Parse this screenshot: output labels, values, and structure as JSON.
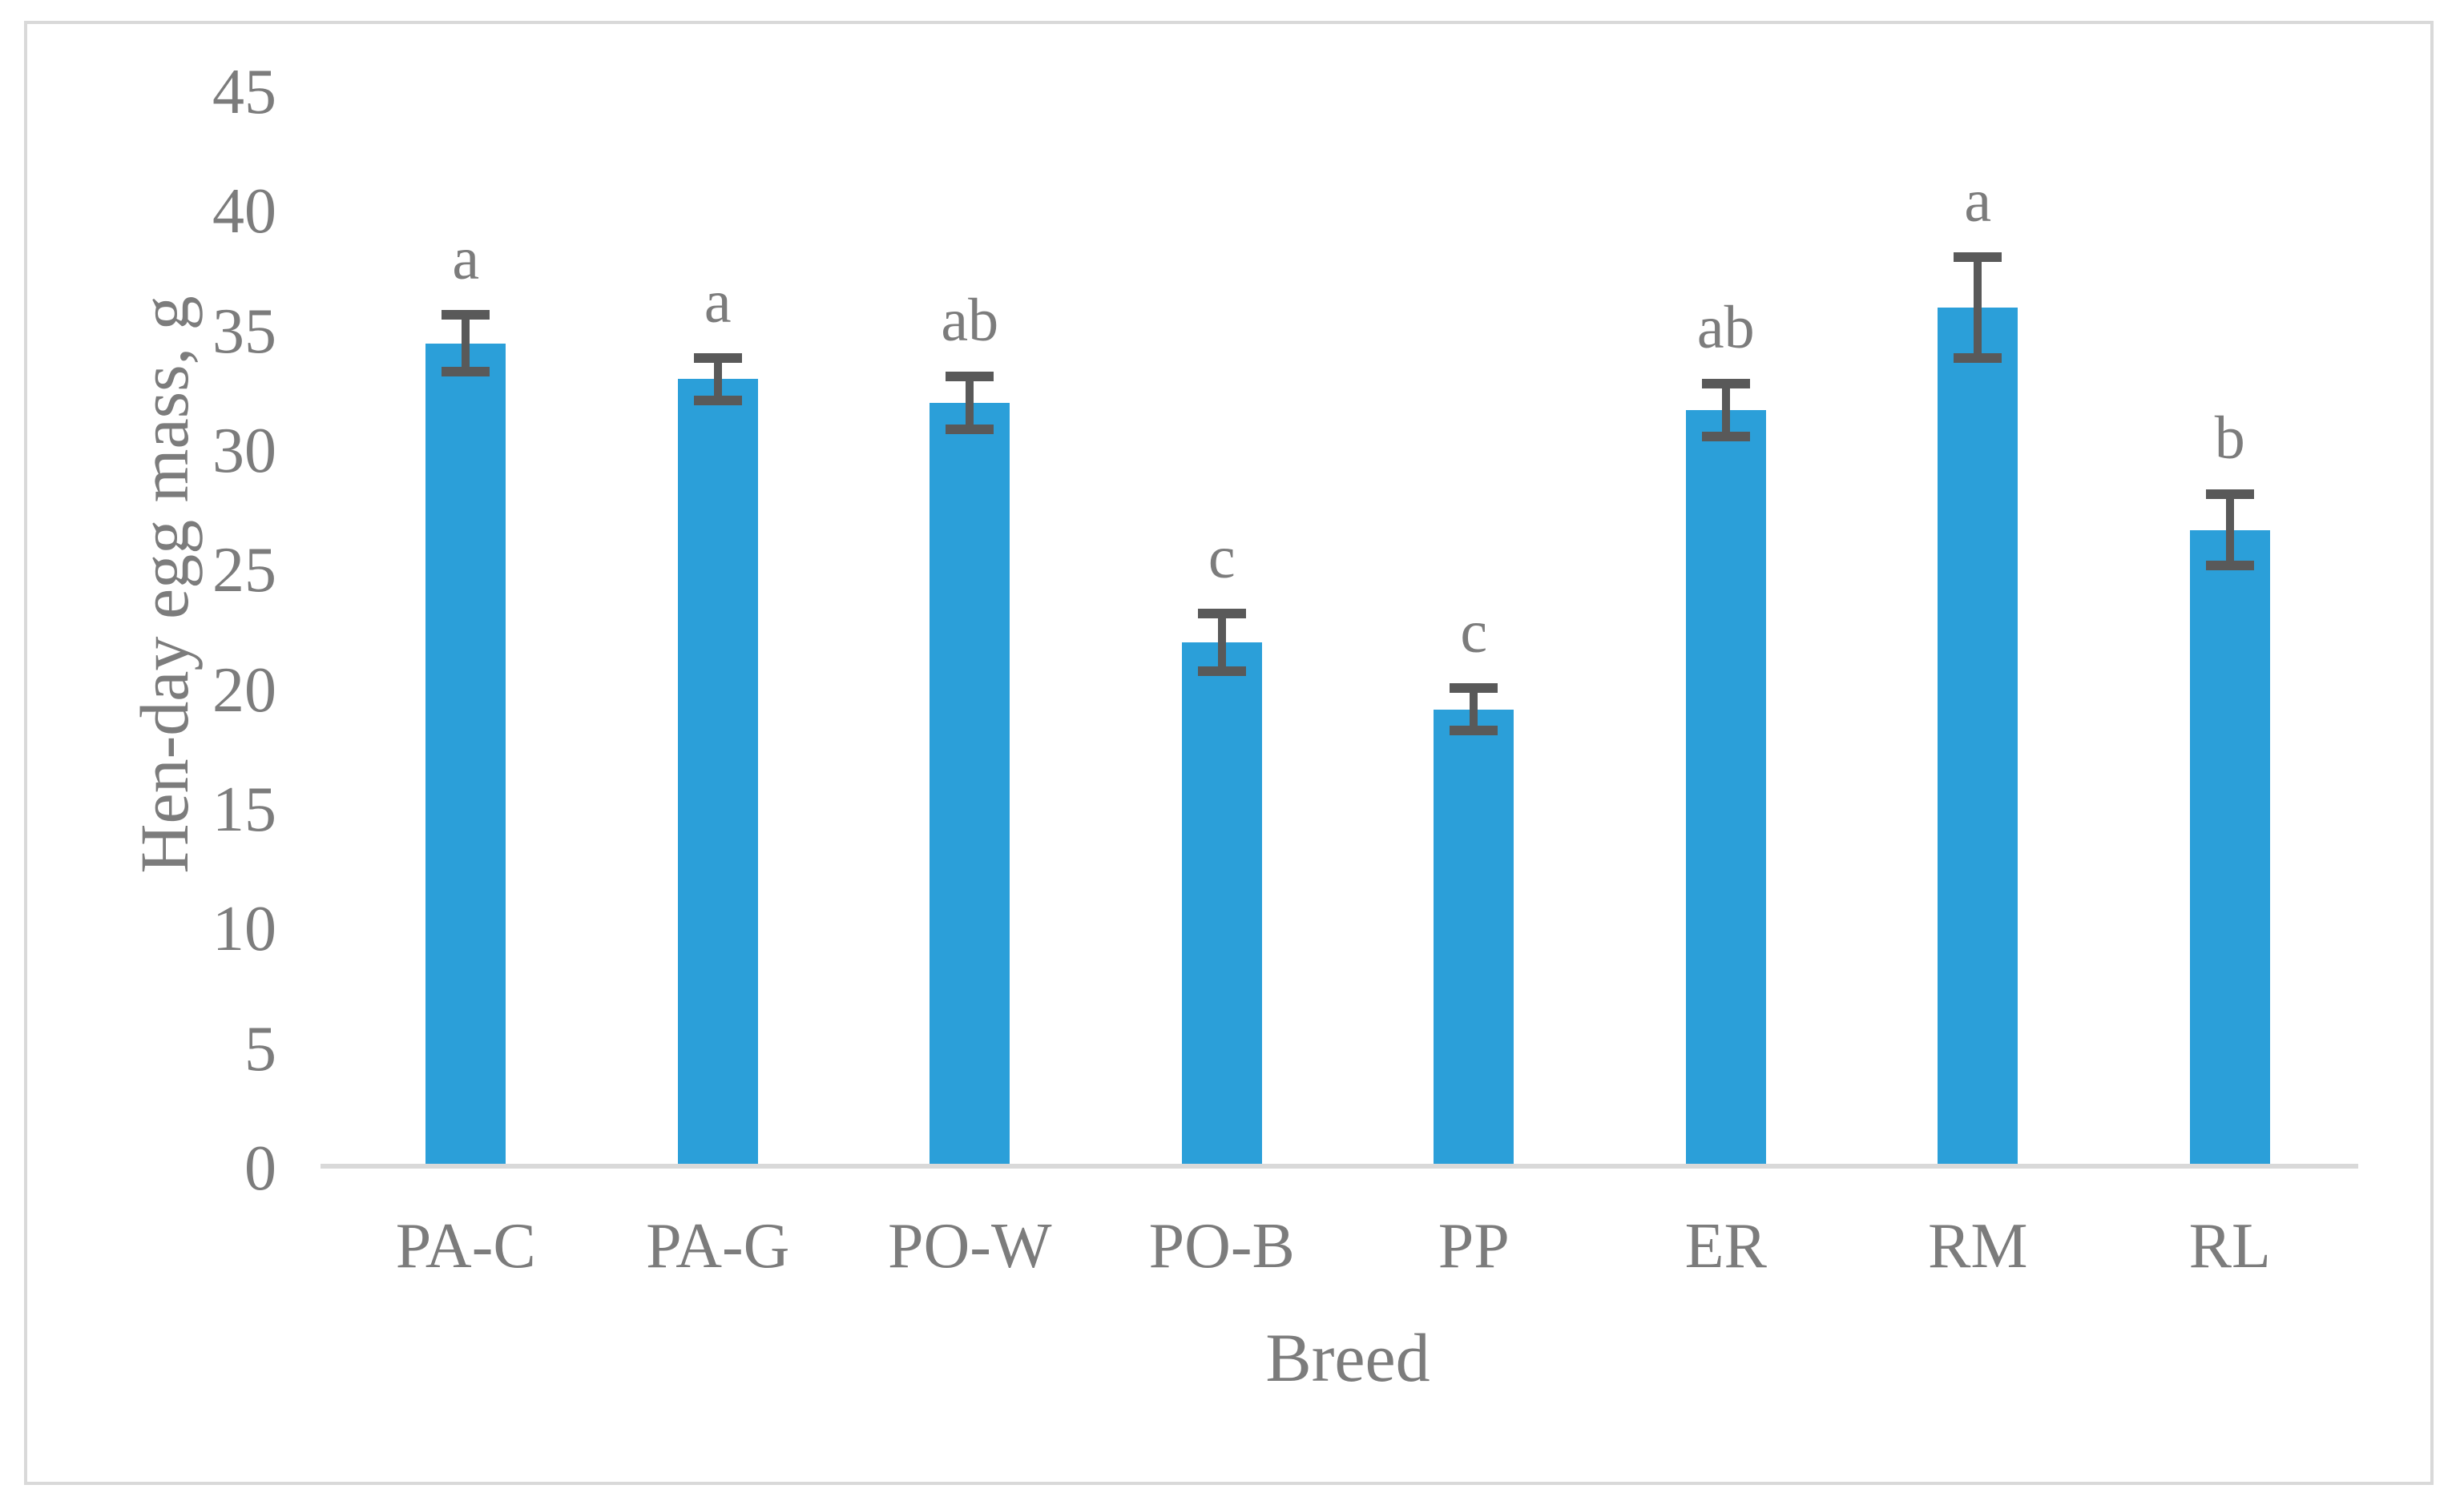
{
  "figure": {
    "background": "#FFFFFF",
    "border_color": "#D9D9D9"
  },
  "chart_data": {
    "type": "bar",
    "title": "",
    "xlabel": "Breed",
    "ylabel": "Hen-day egg mass, g",
    "categories": [
      "PA-C",
      "PA-G",
      "PO-W",
      "PO-B",
      "PP",
      "ER",
      "RM",
      "RL"
    ],
    "values": [
      34.5,
      33.0,
      32.0,
      22.0,
      19.2,
      31.7,
      36.0,
      26.7
    ],
    "errors": [
      1.2,
      0.9,
      1.1,
      1.2,
      0.9,
      1.1,
      2.1,
      1.5
    ],
    "sig_letters": [
      "a",
      "a",
      "ab",
      "c",
      "c",
      "ab",
      "a",
      "b"
    ],
    "ylim": [
      0,
      45
    ],
    "yticks": [
      0,
      5,
      10,
      15,
      20,
      25,
      30,
      35,
      40,
      45
    ],
    "grid": false,
    "legend": "none",
    "bar_color": "#2B9FD9",
    "error_bar_color": "#595959",
    "text_color": "#7C7C7C",
    "axis_line_color": "#D9D9D9"
  }
}
